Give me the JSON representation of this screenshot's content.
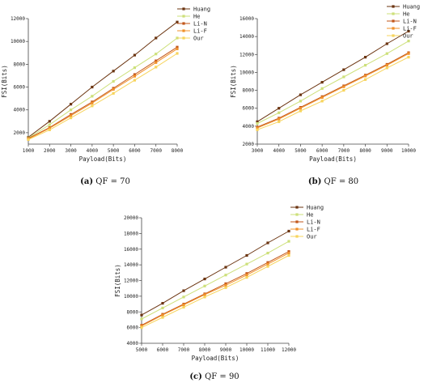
{
  "chart_data": [
    {
      "type": "line",
      "caption_label": "(a)",
      "caption_text": "QF = 70",
      "xlabel": "Payload(Bits)",
      "ylabel": "FSI(Bits)",
      "x": [
        1000,
        2000,
        3000,
        4000,
        5000,
        6000,
        7000,
        8000
      ],
      "xticks": [
        1000,
        2000,
        3000,
        4000,
        5000,
        6000,
        7000,
        8000
      ],
      "yticks": [
        2000,
        4000,
        6000,
        8000,
        10000,
        12000
      ],
      "xlim": [
        1000,
        8000
      ],
      "ylim": [
        1000,
        12000
      ],
      "legend_position": "top-right",
      "series": [
        {
          "name": "Huang",
          "values": [
            1600,
            3000,
            4500,
            6000,
            7400,
            8800,
            10300,
            11700
          ]
        },
        {
          "name": "He",
          "values": [
            1550,
            2700,
            4000,
            5200,
            6500,
            7700,
            8900,
            10300
          ]
        },
        {
          "name": "Li-N",
          "values": [
            1500,
            2450,
            3600,
            4700,
            5900,
            7100,
            8300,
            9500
          ]
        },
        {
          "name": "Li-F",
          "values": [
            1450,
            2400,
            3500,
            4600,
            5800,
            6950,
            8150,
            9350
          ]
        },
        {
          "name": "Our",
          "values": [
            1400,
            2250,
            3300,
            4350,
            5450,
            6600,
            7750,
            8950
          ]
        }
      ]
    },
    {
      "type": "line",
      "caption_label": "(b)",
      "caption_text": "QF = 80",
      "xlabel": "Payload(Bits)",
      "ylabel": "FSI(Bits)",
      "x": [
        3000,
        4000,
        5000,
        6000,
        7000,
        8000,
        9000,
        10000
      ],
      "xticks": [
        3000,
        4000,
        5000,
        6000,
        7000,
        8000,
        9000,
        10000
      ],
      "yticks": [
        2000,
        4000,
        6000,
        8000,
        10000,
        12000,
        14000,
        16000
      ],
      "xlim": [
        3000,
        10000
      ],
      "ylim": [
        2000,
        16000
      ],
      "legend_position": "top-right",
      "series": [
        {
          "name": "Huang",
          "values": [
            4500,
            6000,
            7500,
            8900,
            10300,
            11700,
            13200,
            14600
          ]
        },
        {
          "name": "He",
          "values": [
            4300,
            5500,
            6800,
            8200,
            9500,
            10800,
            12100,
            13500
          ]
        },
        {
          "name": "Li-N",
          "values": [
            3900,
            4900,
            6100,
            7300,
            8500,
            9700,
            10900,
            12200
          ]
        },
        {
          "name": "Li-F",
          "values": [
            3800,
            4800,
            6000,
            7200,
            8400,
            9600,
            10800,
            12100
          ]
        },
        {
          "name": "Our",
          "values": [
            3600,
            4500,
            5700,
            6800,
            8000,
            9200,
            10500,
            11700
          ]
        }
      ]
    },
    {
      "type": "line",
      "caption_label": "(c)",
      "caption_text": "QF = 90",
      "xlabel": "Payload(Bits)",
      "ylabel": "FSI(Bits)",
      "x": [
        5000,
        6000,
        7000,
        8000,
        9000,
        10000,
        11000,
        12000
      ],
      "xticks": [
        5000,
        6000,
        7000,
        8000,
        9000,
        10000,
        11000,
        12000
      ],
      "yticks": [
        4000,
        6000,
        8000,
        10000,
        12000,
        14000,
        16000,
        18000,
        20000
      ],
      "xlim": [
        5000,
        12000
      ],
      "ylim": [
        4000,
        20000
      ],
      "legend_position": "top-right",
      "series": [
        {
          "name": "Huang",
          "values": [
            7600,
            9100,
            10700,
            12200,
            13700,
            15200,
            16800,
            18300
          ]
        },
        {
          "name": "He",
          "values": [
            7100,
            8500,
            9900,
            11300,
            12700,
            14100,
            15500,
            17000
          ]
        },
        {
          "name": "Li-N",
          "values": [
            6300,
            7700,
            9000,
            10300,
            11600,
            12900,
            14300,
            15700
          ]
        },
        {
          "name": "Li-F",
          "values": [
            6200,
            7600,
            8900,
            10200,
            11400,
            12700,
            14100,
            15500
          ]
        },
        {
          "name": "Our",
          "values": [
            6000,
            7300,
            8600,
            9900,
            11100,
            12400,
            13800,
            15200
          ]
        }
      ]
    }
  ],
  "colors": {
    "Huang": "#6b3410",
    "He": "#cde07a",
    "Li-N": "#c2561a",
    "Li-F": "#f0902a",
    "Our": "#f7d45c"
  }
}
